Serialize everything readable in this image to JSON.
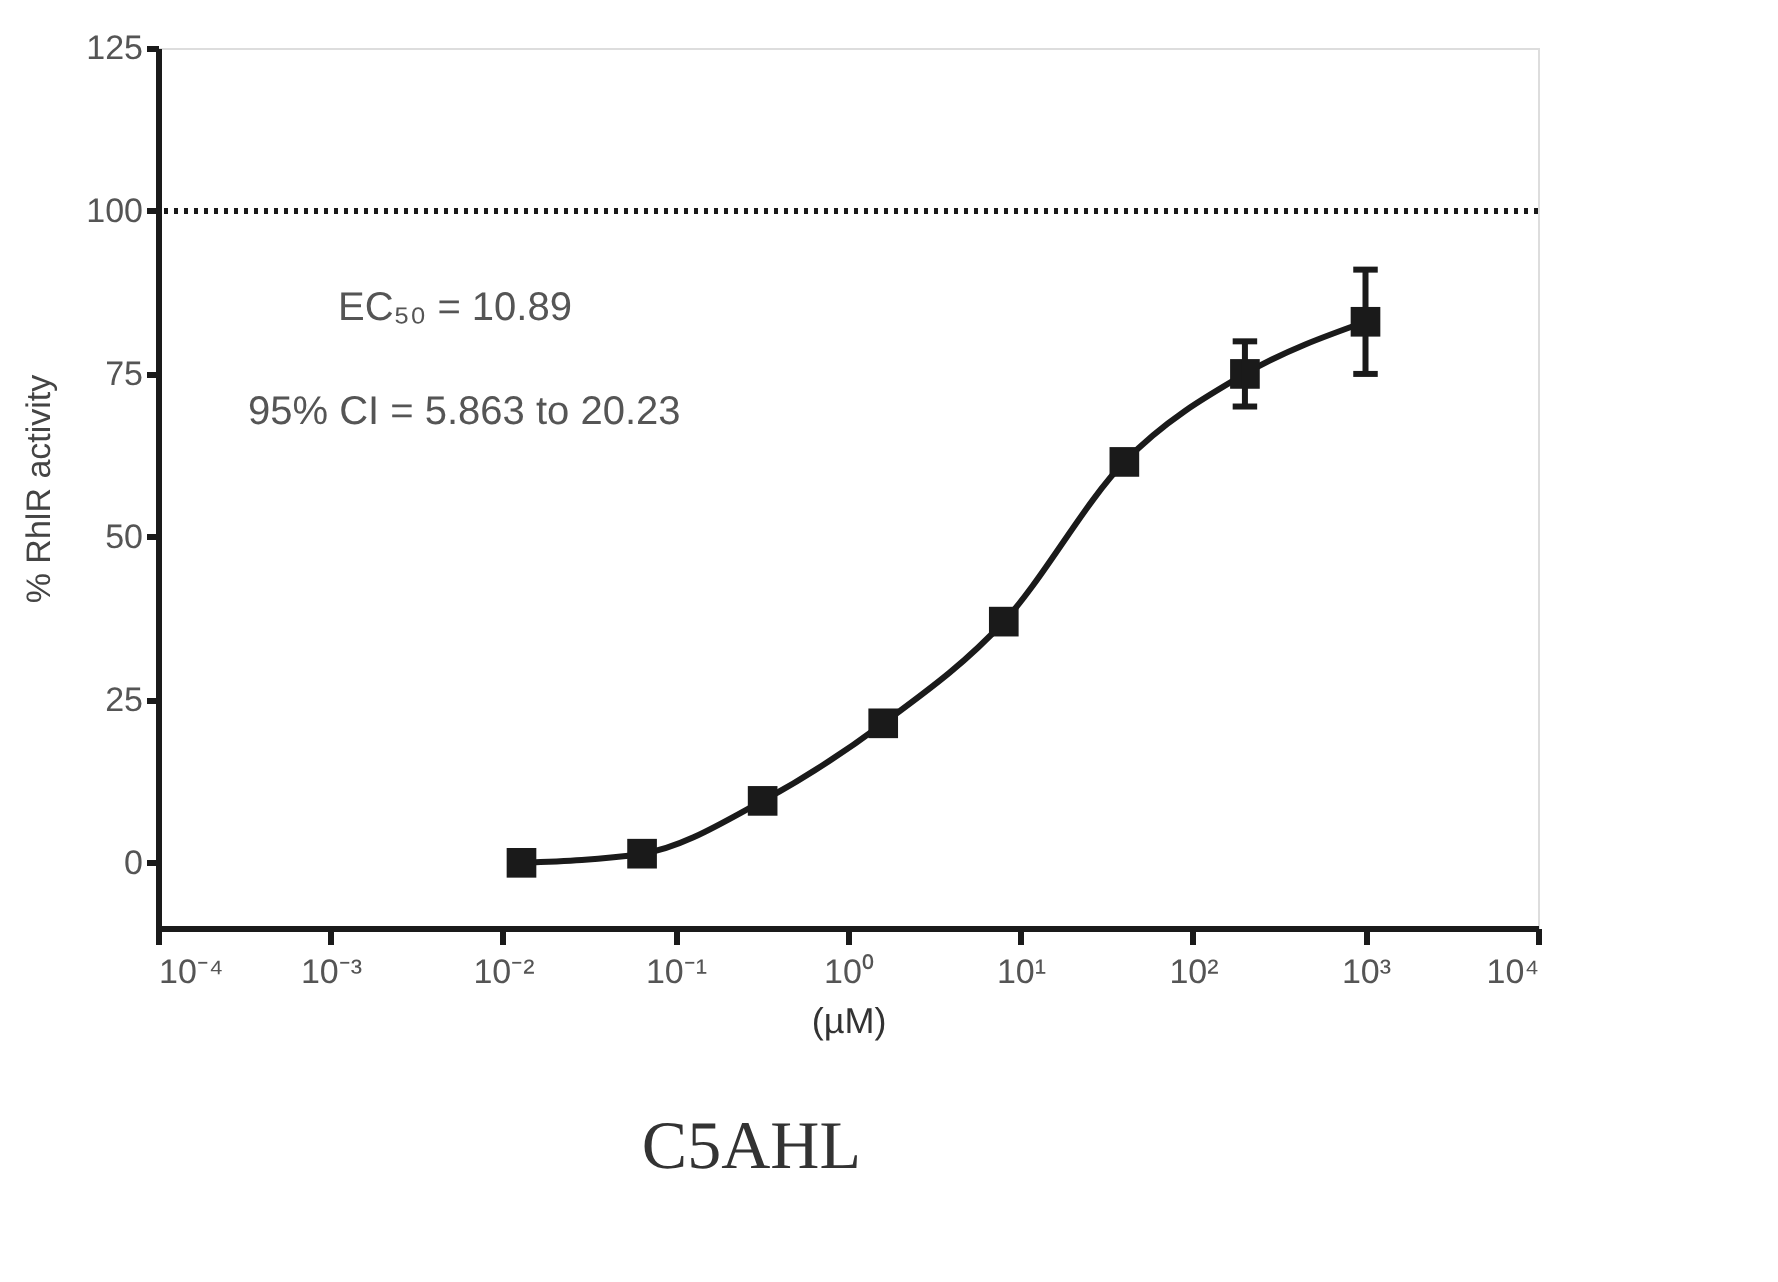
{
  "chart_data": {
    "type": "line",
    "title": "C5AHL",
    "xlabel": "(µM)",
    "ylabel": "% RhlR activity",
    "annotations": [
      "EC₅₀ = 10.89",
      "95% CI = 5.863 to 20.23"
    ],
    "x": [
      0.0128,
      0.064,
      0.32,
      1.6,
      8,
      40,
      200,
      1000
    ],
    "series": [
      {
        "color": "#1a1a1a",
        "marker": "square",
        "line_style": "solid",
        "values": [
          0,
          1.4,
          9.5,
          21.4,
          37,
          61.5,
          75,
          83
        ],
        "errors": [
          null,
          null,
          null,
          null,
          null,
          null,
          5,
          8
        ]
      }
    ],
    "log": "x",
    "xlim": [
      0.0001,
      10000
    ],
    "xticks": [
      {
        "value": 0.0001,
        "label": "10⁻⁴"
      },
      {
        "value": 0.001,
        "label": "10⁻³"
      },
      {
        "value": 0.01,
        "label": "10⁻²"
      },
      {
        "value": 0.1,
        "label": "10⁻¹"
      },
      {
        "value": 1,
        "label": "10⁰"
      },
      {
        "value": 10,
        "label": "10¹"
      },
      {
        "value": 100,
        "label": "10²"
      },
      {
        "value": 1000,
        "label": "10³"
      },
      {
        "value": 10000,
        "label": "10⁴"
      }
    ],
    "ylim": [
      -10,
      125
    ],
    "yticks": [
      0,
      25,
      50,
      75,
      100,
      125
    ],
    "ref_lines": [
      {
        "axis": "y",
        "value": 100,
        "label": null,
        "color": "#1a1a1a",
        "line_style": "dotted"
      }
    ],
    "grid": false
  }
}
